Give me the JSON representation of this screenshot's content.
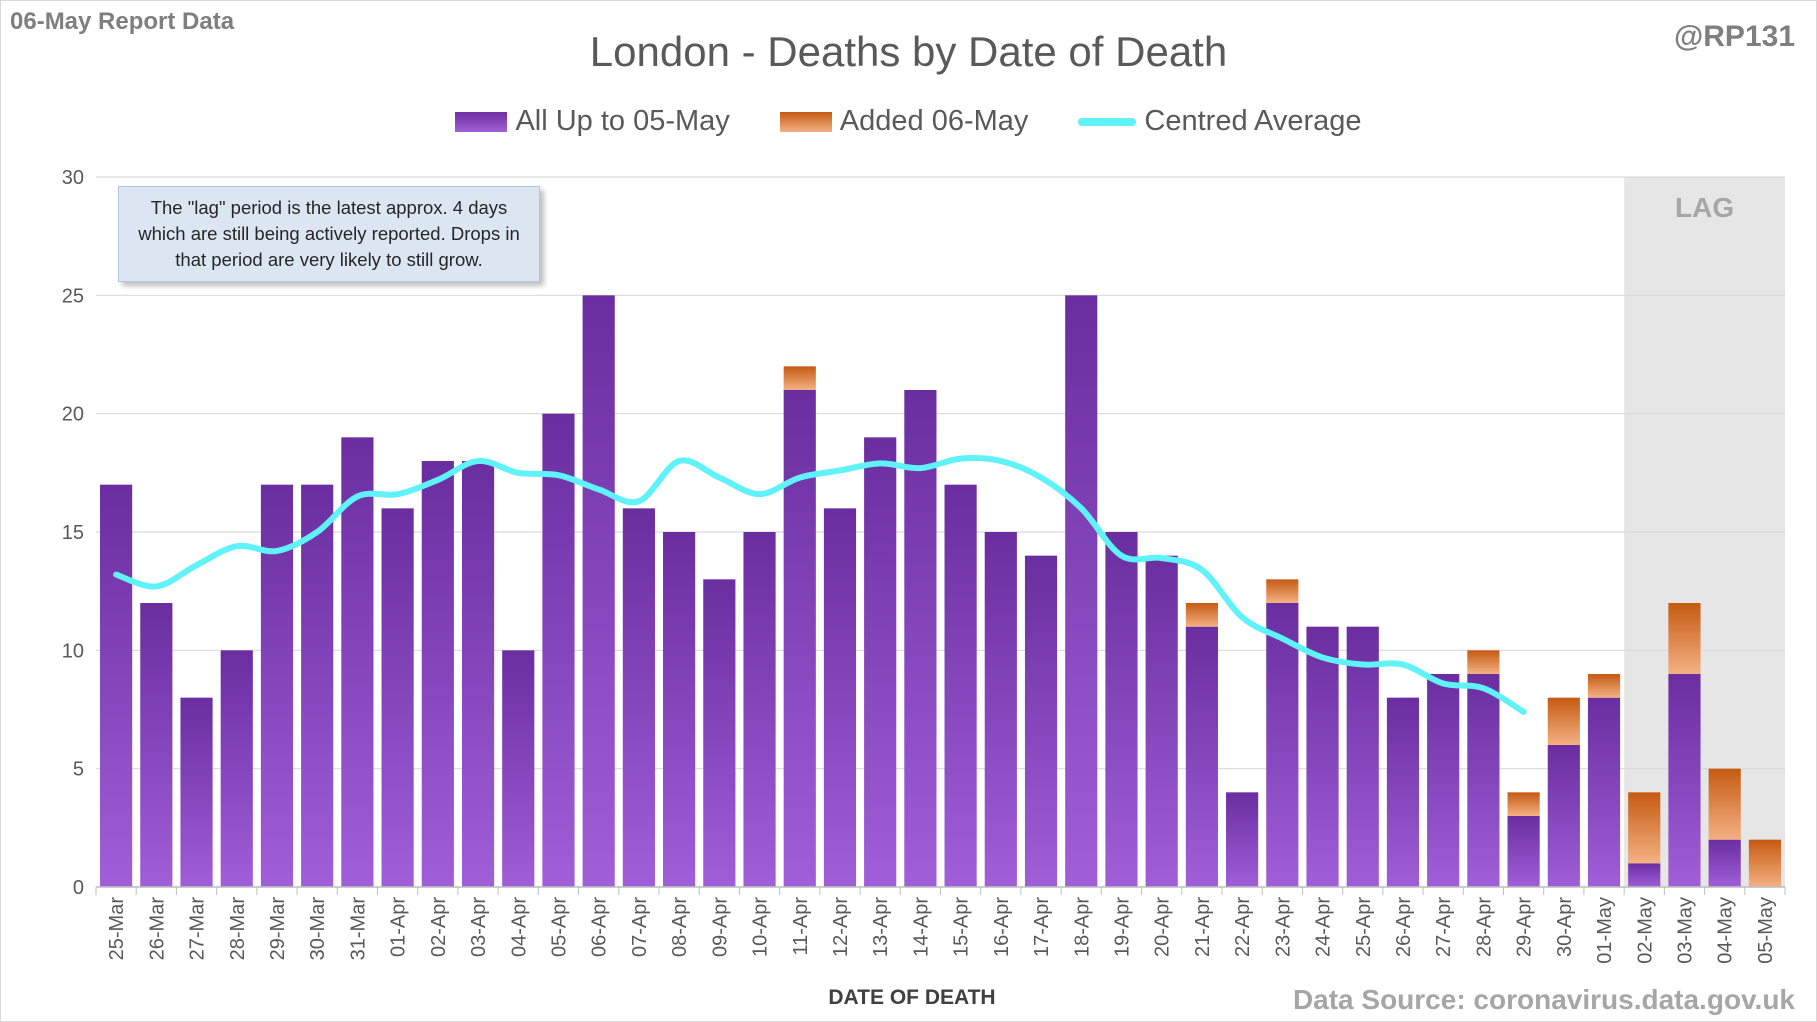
{
  "header": {
    "report_tag": "06-May Report Data",
    "handle": "@RP131"
  },
  "note": "The \"lag\" period is the latest approx. 4 days which are still being actively reported.  Drops in that period are very likely to still grow.",
  "source": "Data Source: coronavirus.data.gov.uk",
  "colors": {
    "purple": "#7030a0",
    "orange": "#c55a11",
    "cyan": "#5ff2f8",
    "lag_band": "#e6e6e6"
  },
  "chart_data": {
    "type": "bar",
    "stacked": true,
    "title": "London - Deaths by Date of Death",
    "xlabel": "DATE OF DEATH",
    "ylabel": "",
    "ylim": [
      0,
      30
    ],
    "yticks": [
      0,
      5,
      10,
      15,
      20,
      25,
      30
    ],
    "grid": true,
    "legend_position": "top",
    "lag_label": "LAG",
    "lag_categories": [
      "02-May",
      "03-May",
      "04-May",
      "05-May"
    ],
    "categories": [
      "25-Mar",
      "26-Mar",
      "27-Mar",
      "28-Mar",
      "29-Mar",
      "30-Mar",
      "31-Mar",
      "01-Apr",
      "02-Apr",
      "03-Apr",
      "04-Apr",
      "05-Apr",
      "06-Apr",
      "07-Apr",
      "08-Apr",
      "09-Apr",
      "10-Apr",
      "11-Apr",
      "12-Apr",
      "13-Apr",
      "14-Apr",
      "15-Apr",
      "16-Apr",
      "17-Apr",
      "18-Apr",
      "19-Apr",
      "20-Apr",
      "21-Apr",
      "22-Apr",
      "23-Apr",
      "24-Apr",
      "25-Apr",
      "26-Apr",
      "27-Apr",
      "28-Apr",
      "29-Apr",
      "30-Apr",
      "01-May",
      "02-May",
      "03-May",
      "04-May",
      "05-May"
    ],
    "series": [
      {
        "name": "All Up to 05-May",
        "kind": "bar",
        "color": "#7030a0",
        "values": [
          17,
          12,
          8,
          10,
          17,
          17,
          19,
          16,
          18,
          18,
          10,
          20,
          25,
          16,
          15,
          13,
          15,
          21,
          16,
          19,
          21,
          17,
          15,
          14,
          25,
          15,
          14,
          11,
          4,
          12,
          11,
          11,
          8,
          9,
          9,
          3,
          6,
          8,
          1,
          9,
          2,
          0
        ]
      },
      {
        "name": "Added 06-May",
        "kind": "bar",
        "color": "#c55a11",
        "values": [
          0,
          0,
          0,
          0,
          0,
          0,
          0,
          0,
          0,
          0,
          0,
          0,
          0,
          0,
          0,
          0,
          0,
          1,
          0,
          0,
          0,
          0,
          0,
          0,
          0,
          0,
          0,
          1,
          0,
          1,
          0,
          0,
          0,
          0,
          1,
          1,
          2,
          1,
          3,
          3,
          3,
          2
        ]
      },
      {
        "name": "Centred Average",
        "kind": "line",
        "color": "#5ff2f8",
        "values": [
          13.2,
          12.7,
          13.6,
          14.4,
          14.2,
          15.0,
          16.5,
          16.6,
          17.2,
          18.0,
          17.5,
          17.4,
          16.8,
          16.3,
          18.0,
          17.3,
          16.6,
          17.3,
          17.6,
          17.9,
          17.7,
          18.1,
          18.0,
          17.3,
          16.0,
          14.0,
          13.9,
          13.4,
          11.4,
          10.5,
          9.7,
          9.4,
          9.4,
          8.6,
          8.4,
          7.4,
          null,
          null,
          null,
          null,
          null,
          null
        ]
      }
    ]
  }
}
